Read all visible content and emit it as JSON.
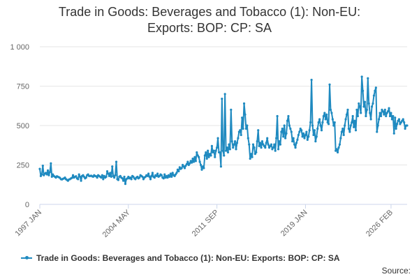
{
  "chart_data": {
    "type": "line",
    "title_line1": "Trade in Goods: Beverages and Tobacco (1): Non-EU:",
    "title_line2": "Exports: BOP: CP: SA",
    "xlabel": "",
    "ylabel": "",
    "ylim": [
      0,
      1000
    ],
    "yticks": [
      {
        "value": 0,
        "label": "0"
      },
      {
        "value": 250,
        "label": "250"
      },
      {
        "value": 500,
        "label": "500"
      },
      {
        "value": 750,
        "label": "750"
      },
      {
        "value": 1000,
        "label": "1 000"
      }
    ],
    "xticks": [
      {
        "index": 0,
        "label": "1997 JAN"
      },
      {
        "index": 88,
        "label": "2004 MAY"
      },
      {
        "index": 176,
        "label": "2011 SEP"
      },
      {
        "index": 264,
        "label": "2019 JAN"
      },
      {
        "index": 349,
        "label": "2026 FEB"
      }
    ],
    "series": [
      {
        "name": "Trade in Goods: Beverages and Tobacco (1): Non-EU: Exports: BOP: CP: SA",
        "color": "#1f8ac0",
        "start": "1997 JAN",
        "frequency": "monthly",
        "values": [
          225,
          180,
          190,
          245,
          185,
          195,
          200,
          190,
          215,
          185,
          205,
          260,
          175,
          190,
          180,
          175,
          170,
          178,
          175,
          172,
          168,
          160,
          158,
          162,
          165,
          170,
          160,
          155,
          150,
          158,
          160,
          165,
          168,
          185,
          170,
          175,
          178,
          165,
          160,
          190,
          175,
          150,
          180,
          185,
          175,
          165,
          170,
          185,
          190,
          180,
          180,
          182,
          178,
          175,
          185,
          180,
          178,
          170,
          185,
          180,
          175,
          170,
          185,
          160,
          180,
          170,
          175,
          210,
          195,
          180,
          200,
          175,
          240,
          180,
          170,
          185,
          270,
          160,
          155,
          175,
          180,
          170,
          165,
          150,
          175,
          130,
          160,
          165,
          175,
          165,
          170,
          160,
          180,
          175,
          165,
          160,
          170,
          175,
          165,
          170,
          185,
          180,
          175,
          160,
          170,
          175,
          185,
          180,
          195,
          175,
          160,
          180,
          200,
          175,
          170,
          185,
          180,
          195,
          175,
          180,
          190,
          185,
          170,
          165,
          190,
          170,
          180,
          170,
          185,
          175,
          195,
          175,
          200,
          185,
          180,
          190,
          200,
          220,
          210,
          235,
          225,
          230,
          250,
          240,
          230,
          245,
          255,
          270,
          250,
          260,
          275,
          265,
          290,
          270,
          300,
          275,
          330,
          310,
          300,
          270,
          250,
          220,
          240,
          230,
          310,
          330,
          290,
          340,
          300,
          320,
          310,
          370,
          330,
          340,
          300,
          340,
          360,
          420,
          330,
          330,
          240,
          670,
          340,
          310,
          700,
          340,
          360,
          330,
          380,
          350,
          600,
          400,
          360,
          380,
          400,
          350,
          390,
          420,
          460,
          470,
          440,
          550,
          480,
          640,
          570,
          480,
          500,
          420,
          380,
          290,
          320,
          300,
          380,
          360,
          320,
          330,
          400,
          470,
          370,
          390,
          360,
          400,
          380,
          370,
          360,
          390,
          420,
          380,
          360,
          370,
          380,
          350,
          360,
          380,
          340,
          420,
          560,
          350,
          400,
          380,
          460,
          480,
          430,
          500,
          420,
          450,
          530,
          560,
          500,
          480,
          460,
          400,
          420,
          380,
          360,
          390,
          410,
          440,
          460,
          480,
          470,
          430,
          450,
          420,
          440,
          460,
          410,
          430,
          470,
          520,
          790,
          500,
          440,
          470,
          400,
          430,
          480,
          520,
          540,
          500,
          470,
          520,
          560,
          580,
          540,
          570,
          520,
          510,
          760,
          600,
          580,
          540,
          500,
          520,
          340,
          350,
          330,
          360,
          380,
          420,
          460,
          480,
          440,
          500,
          540,
          570,
          600,
          480,
          460,
          500,
          520,
          560,
          490,
          530,
          470,
          600,
          560,
          640,
          620,
          580,
          810,
          720,
          620,
          650,
          560,
          600,
          800,
          640,
          580,
          540,
          620,
          640,
          690,
          720,
          740,
          460,
          500,
          540,
          580,
          560,
          600,
          590,
          570,
          600,
          560,
          580,
          590,
          610,
          560,
          580,
          540,
          560,
          450,
          550,
          480,
          510,
          530,
          540,
          510,
          520,
          530,
          540,
          520,
          480,
          500,
          500
        ]
      }
    ]
  },
  "legend": {
    "label": "Trade in Goods: Beverages and Tobacco (1): Non-EU: Exports: BOP: CP: SA"
  },
  "footer": {
    "source_label": "Source:"
  },
  "colors": {
    "series": "#1f8ac0",
    "grid": "#e6e6e6",
    "axis": "#ccd6eb",
    "text": "#333333",
    "tick_text": "#666666"
  }
}
